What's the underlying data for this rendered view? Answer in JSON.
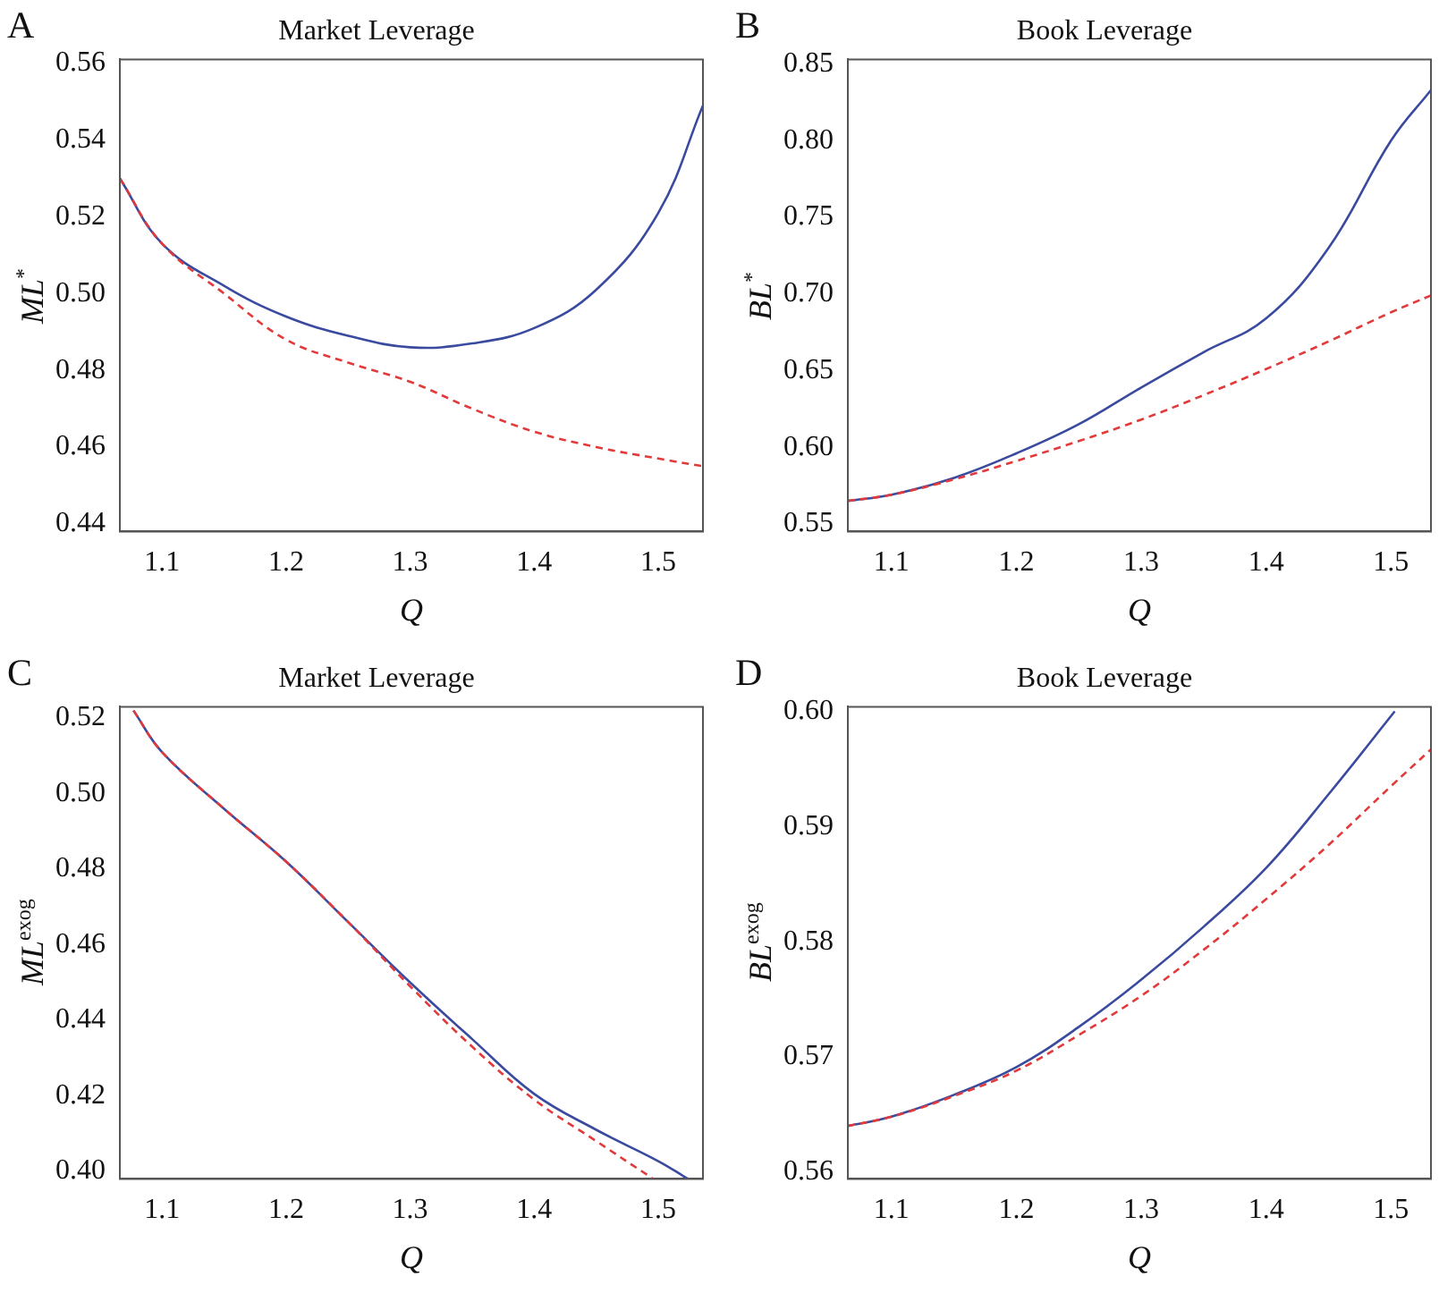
{
  "chart_data": [
    {
      "type": "line",
      "title": "Market Leverage",
      "xlabel": "Q",
      "ylabel": "ML$^{*}$",
      "annotations": [
        "A"
      ],
      "xlim": [
        1.066,
        1.536
      ],
      "xticks": [
        1.1,
        1.2,
        1.3,
        1.4,
        1.5
      ],
      "ylim": [
        0.438,
        0.561
      ],
      "yticks": [
        0.44,
        0.46,
        0.48,
        {
          "value": 0.5,
          "label": "0.50"
        },
        0.52,
        0.54,
        0.56
      ],
      "grid": false,
      "legend": false,
      "marker": "none",
      "series": [
        {
          "color": "#3a4a9e",
          "line_style": "solid",
          "x": [
            1.066,
            1.1,
            1.15,
            1.2,
            1.25,
            1.3,
            1.35,
            1.4,
            1.45,
            1.5,
            1.536
          ],
          "values": [
            0.53,
            0.513,
            0.502,
            0.494,
            0.489,
            0.486,
            0.487,
            0.491,
            0.501,
            0.521,
            0.549
          ]
        },
        {
          "color": "#e23a3a",
          "line_style": "dashed",
          "x": [
            1.066,
            1.1,
            1.15,
            1.2,
            1.25,
            1.3,
            1.35,
            1.4,
            1.45,
            1.5,
            1.536
          ],
          "values": [
            0.53,
            0.513,
            0.5,
            0.488,
            0.482,
            0.477,
            0.47,
            0.464,
            0.46,
            0.457,
            0.455
          ]
        }
      ]
    },
    {
      "type": "line",
      "title": "Book Leverage",
      "xlabel": "Q",
      "ylabel": "BL$^{*}$",
      "annotations": [
        "B"
      ],
      "xlim": [
        1.065,
        1.532
      ],
      "xticks": [
        1.1,
        1.2,
        1.3,
        1.4,
        1.5
      ],
      "ylim": [
        0.545,
        0.853
      ],
      "yticks": [
        {
          "value": 0.55,
          "label": "0.55"
        },
        {
          "value": 0.6,
          "label": "0.60"
        },
        {
          "value": 0.65,
          "label": "0.65"
        },
        {
          "value": 0.7,
          "label": "0.70"
        },
        {
          "value": 0.75,
          "label": "0.75"
        },
        {
          "value": 0.8,
          "label": "0.80"
        },
        {
          "value": 0.85,
          "label": "0.85"
        }
      ],
      "grid": false,
      "legend": false,
      "marker": "none",
      "series": [
        {
          "color": "#3a4a9e",
          "line_style": "solid",
          "x": [
            1.065,
            1.1,
            1.15,
            1.2,
            1.25,
            1.3,
            1.35,
            1.4,
            1.45,
            1.5,
            1.532
          ],
          "values": [
            0.565,
            0.569,
            0.58,
            0.596,
            0.615,
            0.639,
            0.662,
            0.684,
            0.73,
            0.8,
            0.833
          ]
        },
        {
          "color": "#e23a3a",
          "line_style": "dashed",
          "x": [
            1.065,
            1.1,
            1.15,
            1.2,
            1.25,
            1.3,
            1.35,
            1.4,
            1.45,
            1.5,
            1.532
          ],
          "values": [
            0.565,
            0.569,
            0.579,
            0.591,
            0.604,
            0.618,
            0.634,
            0.651,
            0.669,
            0.688,
            0.699
          ]
        }
      ]
    },
    {
      "type": "line",
      "title": "Market Leverage",
      "xlabel": "Q",
      "ylabel": "ML$^{exog}$",
      "annotations": [
        "C"
      ],
      "xlim": [
        1.066,
        1.536
      ],
      "xticks": [
        1.1,
        1.2,
        1.3,
        1.4,
        1.5
      ],
      "ylim": [
        0.398,
        0.523
      ],
      "yticks": [
        {
          "value": 0.4,
          "label": "0.40"
        },
        0.42,
        0.44,
        0.46,
        0.48,
        {
          "value": 0.5,
          "label": "0.50"
        },
        0.52
      ],
      "grid": false,
      "legend": false,
      "marker": "none",
      "series": [
        {
          "color": "#3a4a9e",
          "line_style": "solid",
          "x": [
            1.077,
            1.1,
            1.15,
            1.2,
            1.25,
            1.3,
            1.35,
            1.4,
            1.45,
            1.5,
            1.524
          ],
          "values": [
            0.522,
            0.511,
            0.496,
            0.482,
            0.466,
            0.45,
            0.435,
            0.4205,
            0.411,
            0.4027,
            0.398
          ]
        },
        {
          "color": "#e23a3a",
          "line_style": "dashed",
          "x": [
            1.077,
            1.1,
            1.15,
            1.2,
            1.25,
            1.3,
            1.35,
            1.4,
            1.45,
            1.496
          ],
          "values": [
            0.522,
            0.511,
            0.496,
            0.482,
            0.466,
            0.449,
            0.433,
            0.419,
            0.408,
            0.398
          ]
        }
      ]
    },
    {
      "type": "line",
      "title": "Book Leverage",
      "xlabel": "Q",
      "ylabel": "BL$^{exog}$",
      "annotations": [
        "D"
      ],
      "xlim": [
        1.065,
        1.532
      ],
      "xticks": [
        1.1,
        1.2,
        1.3,
        1.4,
        1.5
      ],
      "ylim": [
        0.5594,
        0.6004
      ],
      "yticks": [
        0.56,
        0.57,
        0.58,
        0.59,
        {
          "value": 0.6,
          "label": "0.60"
        }
      ],
      "grid": false,
      "legend": false,
      "marker": "none",
      "series": [
        {
          "color": "#3a4a9e",
          "line_style": "solid",
          "x": [
            1.065,
            1.1,
            1.15,
            1.2,
            1.25,
            1.3,
            1.35,
            1.4,
            1.45,
            1.503
          ],
          "values": [
            0.564,
            0.5648,
            0.5667,
            0.5691,
            0.5726,
            0.5767,
            0.5813,
            0.5864,
            0.5928,
            0.6
          ]
        },
        {
          "color": "#e23a3a",
          "line_style": "dashed",
          "x": [
            1.065,
            1.1,
            1.15,
            1.2,
            1.25,
            1.3,
            1.35,
            1.4,
            1.45,
            1.5,
            1.532
          ],
          "values": [
            0.564,
            0.5648,
            0.5666,
            0.5688,
            0.5719,
            0.5753,
            0.5793,
            0.5837,
            0.5884,
            0.5935,
            0.5967
          ]
        }
      ]
    }
  ]
}
